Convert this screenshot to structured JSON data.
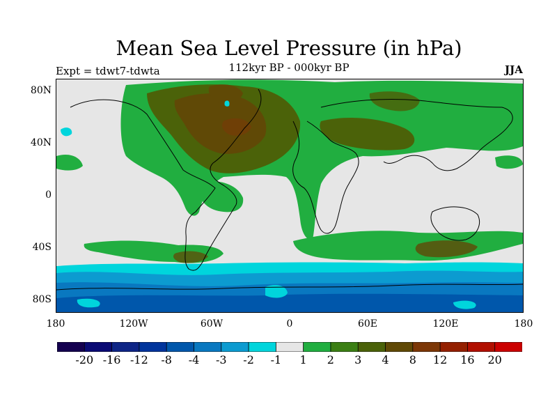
{
  "title": "Mean Sea Level Pressure (in hPa)",
  "subtitle": "112kyr BP - 000kyr BP",
  "experiment": "Expt = tdwt7-tdwta",
  "season": "JJA",
  "lat_ticks": [
    "80N",
    "40N",
    "0",
    "40S",
    "80S"
  ],
  "lon_ticks": [
    "180",
    "120W",
    "60W",
    "0",
    "60E",
    "120E",
    "180"
  ],
  "colorbar": {
    "colors": [
      "#14004f",
      "#0a0a74",
      "#0e2586",
      "#00349c",
      "#0057ab",
      "#0978c0",
      "#0c9bd0",
      "#00d5dc",
      "#e6e6e6",
      "#21ae40",
      "#3b7f14",
      "#4b6209",
      "#604906",
      "#7c3707",
      "#942000",
      "#b10f00",
      "#cb0000"
    ],
    "labels": [
      "-20",
      "-16",
      "-12",
      "-8",
      "-4",
      "-3",
      "-2",
      "-1",
      "1",
      "2",
      "3",
      "4",
      "8",
      "12",
      "16",
      "20"
    ]
  },
  "palette": {
    "ocean_neutral": "#e6e6e6",
    "coast": "#000000"
  }
}
